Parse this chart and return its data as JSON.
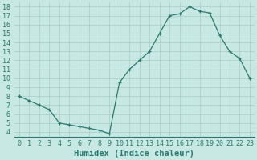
{
  "x": [
    0,
    1,
    2,
    3,
    4,
    5,
    6,
    7,
    8,
    9,
    10,
    11,
    12,
    13,
    14,
    15,
    16,
    17,
    18,
    19,
    20,
    21,
    22,
    23
  ],
  "y": [
    8.0,
    7.5,
    7.0,
    6.5,
    5.0,
    4.8,
    4.6,
    4.4,
    4.2,
    3.8,
    9.5,
    11.0,
    12.0,
    13.0,
    15.0,
    17.0,
    17.2,
    18.0,
    17.5,
    17.3,
    14.8,
    13.0,
    12.2,
    10.0
  ],
  "line_color": "#2a7a6f",
  "marker": "+",
  "marker_size": 3,
  "bg_color": "#c8e8e4",
  "grid_color": "#a8ccc8",
  "xlabel": "Humidex (Indice chaleur)",
  "xlim": [
    -0.5,
    23.5
  ],
  "ylim": [
    3.5,
    18.5
  ],
  "yticks": [
    4,
    5,
    6,
    7,
    8,
    9,
    10,
    11,
    12,
    13,
    14,
    15,
    16,
    17,
    18
  ],
  "xticks": [
    0,
    1,
    2,
    3,
    4,
    5,
    6,
    7,
    8,
    9,
    10,
    11,
    12,
    13,
    14,
    15,
    16,
    17,
    18,
    19,
    20,
    21,
    22,
    23
  ],
  "tick_font_size": 6,
  "label_font_size": 7.5,
  "figsize": [
    3.2,
    2.0
  ],
  "dpi": 100
}
